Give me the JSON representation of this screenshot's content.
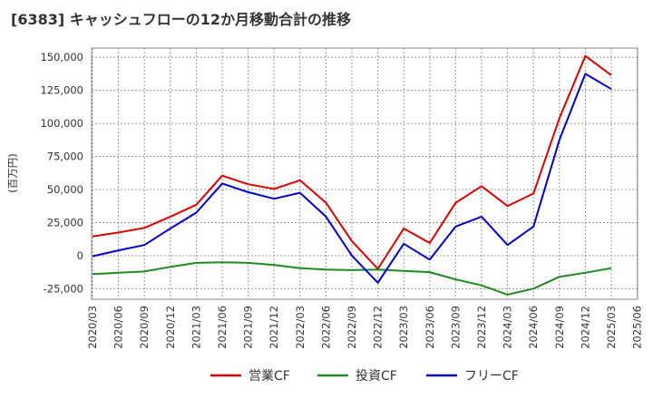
{
  "chart_data": {
    "type": "line",
    "title": "[6383]  キャッシュフローの12か月移動合計の推移",
    "ylabel": "(百万円)",
    "xlabel": "",
    "ylim": [
      -33000,
      157000
    ],
    "yticks": [
      150000,
      125000,
      100000,
      75000,
      50000,
      25000,
      0,
      -25000
    ],
    "ytick_labels": [
      "150,000",
      "125,000",
      "100,000",
      "75,000",
      "50,000",
      "25,000",
      "0",
      "-25,000"
    ],
    "grid": true,
    "legend_position": "bottom-center",
    "categories": [
      "2020/03",
      "2020/06",
      "2020/09",
      "2020/12",
      "2021/03",
      "2021/06",
      "2021/09",
      "2021/12",
      "2022/03",
      "2022/06",
      "2022/09",
      "2022/12",
      "2023/03",
      "2023/06",
      "2023/09",
      "2023/12",
      "2024/03",
      "2024/06",
      "2024/09",
      "2024/12",
      "2025/03",
      "2025/06"
    ],
    "series": [
      {
        "name": "営業CF",
        "color": "#dd0000",
        "values": [
          14500,
          17500,
          21000,
          29500,
          38500,
          60500,
          54000,
          50500,
          57000,
          40000,
          11000,
          -10000,
          20500,
          9500,
          40000,
          52500,
          37500,
          47000,
          104000,
          151000,
          136500,
          null
        ]
      },
      {
        "name": "投資CF",
        "color": "#228822",
        "values": [
          -14000,
          -13000,
          -12000,
          -8500,
          -5500,
          -5000,
          -5500,
          -7000,
          -9500,
          -10500,
          -11000,
          -10500,
          -11500,
          -12500,
          -18000,
          -22500,
          -29500,
          -25000,
          -16000,
          -13000,
          -9500,
          null
        ]
      },
      {
        "name": "フリーCF",
        "color": "#0000cc",
        "values": [
          -500,
          4000,
          8000,
          20500,
          32500,
          54500,
          48000,
          43000,
          47500,
          29500,
          0,
          -20500,
          9000,
          -3000,
          22000,
          29500,
          8000,
          22000,
          87500,
          137500,
          126000,
          null
        ]
      }
    ]
  }
}
